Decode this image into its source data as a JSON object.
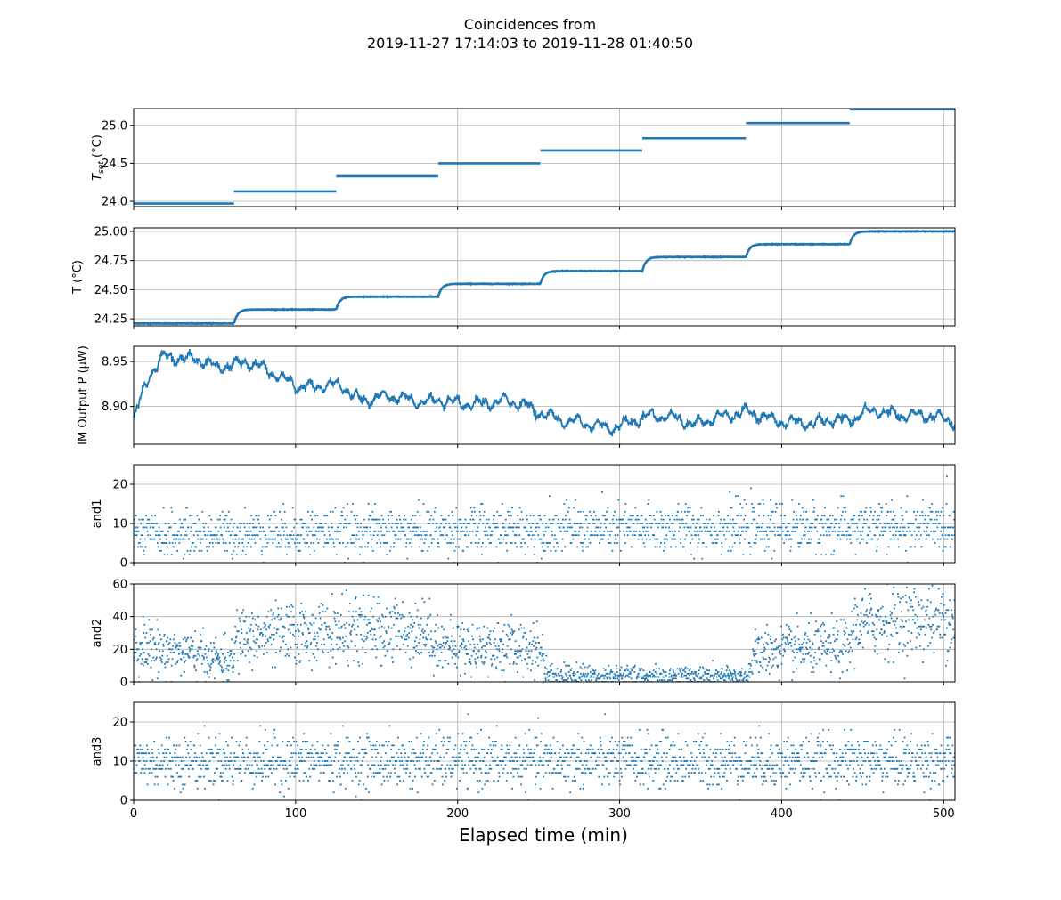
{
  "chart_data": {
    "type": "scatter",
    "title": "Coincidences from",
    "subtitle": "2019-11-27 17:14:03 to 2019-11-28 01:40:50",
    "xlabel": "Elapsed time (min)",
    "xlim": [
      0,
      507
    ],
    "xticks": [
      "0",
      "100",
      "200",
      "300",
      "400",
      "500"
    ],
    "grid": true,
    "color": "#1f77b4",
    "panels": [
      {
        "id": "tset",
        "ylabel_main": "T",
        "ylabel_sub": "set",
        "ylabel_rest": " (°C)",
        "ylim": [
          23.93,
          25.22
        ],
        "yticks": [
          "24.0",
          "24.5",
          "25.0"
        ],
        "kind": "steps",
        "steps": [
          {
            "x0": 0,
            "x1": 62,
            "y": 23.97
          },
          {
            "x0": 62,
            "x1": 125,
            "y": 24.13
          },
          {
            "x0": 125,
            "x1": 188,
            "y": 24.33
          },
          {
            "x0": 188,
            "x1": 251,
            "y": 24.5
          },
          {
            "x0": 251,
            "x1": 314,
            "y": 24.67
          },
          {
            "x0": 314,
            "x1": 378,
            "y": 24.83
          },
          {
            "x0": 378,
            "x1": 442,
            "y": 25.03
          },
          {
            "x0": 442,
            "x1": 507,
            "y": 25.21
          }
        ]
      },
      {
        "id": "temp",
        "ylabel": "T (°C)",
        "ylim": [
          24.19,
          25.03
        ],
        "yticks": [
          "24.25",
          "24.50",
          "24.75",
          "25.00"
        ],
        "kind": "relax",
        "stages": [
          {
            "x0": 0,
            "x1": 62,
            "y": 24.21
          },
          {
            "x0": 62,
            "x1": 125,
            "y": 24.33
          },
          {
            "x0": 125,
            "x1": 188,
            "y": 24.44
          },
          {
            "x0": 188,
            "x1": 251,
            "y": 24.55
          },
          {
            "x0": 251,
            "x1": 314,
            "y": 24.66
          },
          {
            "x0": 314,
            "x1": 378,
            "y": 24.78
          },
          {
            "x0": 378,
            "x1": 442,
            "y": 24.89
          },
          {
            "x0": 442,
            "x1": 507,
            "y": 25.0
          }
        ]
      },
      {
        "id": "power",
        "ylabel": "IM Output P (μW)",
        "ylim": [
          8.858,
          8.967
        ],
        "yticks": [
          "8.90",
          "8.95"
        ],
        "kind": "trace",
        "trend": [
          [
            0,
            8.885
          ],
          [
            10,
            8.935
          ],
          [
            20,
            8.958
          ],
          [
            40,
            8.952
          ],
          [
            50,
            8.942
          ],
          [
            70,
            8.952
          ],
          [
            75,
            8.945
          ],
          [
            90,
            8.932
          ],
          [
            110,
            8.921
          ],
          [
            130,
            8.922
          ],
          [
            140,
            8.908
          ],
          [
            160,
            8.91
          ],
          [
            180,
            8.907
          ],
          [
            200,
            8.902
          ],
          [
            215,
            8.905
          ],
          [
            240,
            8.903
          ],
          [
            255,
            8.892
          ],
          [
            265,
            8.882
          ],
          [
            280,
            8.882
          ],
          [
            300,
            8.876
          ],
          [
            320,
            8.892
          ],
          [
            330,
            8.89
          ],
          [
            345,
            8.878
          ],
          [
            360,
            8.89
          ],
          [
            380,
            8.892
          ],
          [
            400,
            8.885
          ],
          [
            420,
            8.878
          ],
          [
            430,
            8.888
          ],
          [
            440,
            8.885
          ],
          [
            460,
            8.895
          ],
          [
            480,
            8.89
          ],
          [
            507,
            8.885
          ]
        ]
      },
      {
        "id": "and1",
        "ylabel": "and1",
        "ylim": [
          0,
          25
        ],
        "yticks": [
          "0",
          "10",
          "20"
        ],
        "kind": "counts",
        "levels": [
          [
            0,
            7
          ],
          [
            120,
            8
          ],
          [
            250,
            8.5
          ],
          [
            400,
            9
          ],
          [
            507,
            9
          ]
        ],
        "spread": 3.2
      },
      {
        "id": "and2",
        "ylabel": "and2",
        "ylim": [
          0,
          60
        ],
        "yticks": [
          "0",
          "20",
          "40",
          "60"
        ],
        "kind": "counts",
        "levels": [
          [
            0,
            22
          ],
          [
            30,
            18
          ],
          [
            62,
            12
          ],
          [
            63,
            27
          ],
          [
            110,
            30
          ],
          [
            160,
            32
          ],
          [
            180,
            32
          ],
          [
            190,
            22
          ],
          [
            251,
            21
          ],
          [
            256,
            4
          ],
          [
            378,
            3
          ],
          [
            385,
            18
          ],
          [
            442,
            22
          ],
          [
            445,
            35
          ],
          [
            470,
            38
          ],
          [
            507,
            38
          ]
        ],
        "spread": 5.5
      },
      {
        "id": "and3",
        "ylabel": "and3",
        "ylim": [
          0,
          25
        ],
        "yticks": [
          "0",
          "10",
          "20"
        ],
        "kind": "counts",
        "levels": [
          [
            0,
            10
          ],
          [
            507,
            10
          ]
        ],
        "spread": 3.3
      }
    ]
  }
}
